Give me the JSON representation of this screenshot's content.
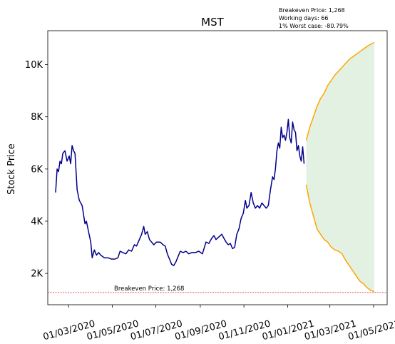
{
  "chart_data": {
    "type": "line",
    "title": "MST",
    "xlabel": "",
    "ylabel": "Stock Price",
    "x_ticks": [
      "01/03/2020",
      "01/05/2020",
      "01/07/2020",
      "01/09/2020",
      "01/11/2020",
      "01/01/2021",
      "01/03/2021",
      "01/05/2021"
    ],
    "y_ticks": [
      "2K",
      "4K",
      "6K",
      "8K",
      "10K"
    ],
    "y_tick_values": [
      2000,
      4000,
      6000,
      8000,
      10000
    ],
    "xlim": [
      "2020-02-01",
      "2021-05-20"
    ],
    "ylim": [
      800,
      11300
    ],
    "grid": false,
    "info_lines": [
      "Breakeven Price: 1,268",
      "Working days: 66",
      "1% Worst case: -80.79%"
    ],
    "breakeven": {
      "value": 1268,
      "label": "Breakeven Price: 1,268",
      "color": "#d62728"
    },
    "series": [
      {
        "color": "#00008b",
        "points": [
          [
            "2020-02-12",
            5100
          ],
          [
            "2020-02-14",
            6000
          ],
          [
            "2020-02-16",
            5900
          ],
          [
            "2020-02-18",
            6300
          ],
          [
            "2020-02-20",
            6200
          ],
          [
            "2020-02-22",
            6600
          ],
          [
            "2020-02-25",
            6700
          ],
          [
            "2020-02-28",
            6300
          ],
          [
            "2020-03-02",
            6500
          ],
          [
            "2020-03-04",
            6200
          ],
          [
            "2020-03-06",
            6900
          ],
          [
            "2020-03-08",
            6700
          ],
          [
            "2020-03-10",
            6600
          ],
          [
            "2020-03-13",
            5200
          ],
          [
            "2020-03-16",
            4800
          ],
          [
            "2020-03-20",
            4600
          ],
          [
            "2020-03-24",
            3900
          ],
          [
            "2020-03-26",
            4000
          ],
          [
            "2020-03-29",
            3600
          ],
          [
            "2020-04-01",
            3200
          ],
          [
            "2020-04-03",
            2600
          ],
          [
            "2020-04-06",
            2900
          ],
          [
            "2020-04-09",
            2700
          ],
          [
            "2020-04-12",
            2800
          ],
          [
            "2020-04-15",
            2700
          ],
          [
            "2020-04-20",
            2600
          ],
          [
            "2020-04-25",
            2600
          ],
          [
            "2020-04-30",
            2550
          ],
          [
            "2020-05-05",
            2550
          ],
          [
            "2020-05-09",
            2600
          ],
          [
            "2020-05-12",
            2850
          ],
          [
            "2020-05-16",
            2800
          ],
          [
            "2020-05-20",
            2750
          ],
          [
            "2020-05-24",
            2900
          ],
          [
            "2020-05-28",
            2850
          ],
          [
            "2020-06-01",
            3100
          ],
          [
            "2020-06-04",
            3050
          ],
          [
            "2020-06-08",
            3300
          ],
          [
            "2020-06-11",
            3500
          ],
          [
            "2020-06-14",
            3800
          ],
          [
            "2020-06-16",
            3500
          ],
          [
            "2020-06-19",
            3600
          ],
          [
            "2020-06-22",
            3300
          ],
          [
            "2020-06-25",
            3200
          ],
          [
            "2020-06-28",
            3100
          ],
          [
            "2020-07-02",
            3200
          ],
          [
            "2020-07-07",
            3200
          ],
          [
            "2020-07-11",
            3100
          ],
          [
            "2020-07-14",
            3050
          ],
          [
            "2020-07-17",
            2750
          ],
          [
            "2020-07-20",
            2550
          ],
          [
            "2020-07-23",
            2350
          ],
          [
            "2020-07-26",
            2300
          ],
          [
            "2020-07-29",
            2450
          ],
          [
            "2020-08-01",
            2650
          ],
          [
            "2020-08-04",
            2850
          ],
          [
            "2020-08-08",
            2800
          ],
          [
            "2020-08-12",
            2850
          ],
          [
            "2020-08-16",
            2750
          ],
          [
            "2020-08-20",
            2800
          ],
          [
            "2020-08-25",
            2800
          ],
          [
            "2020-08-30",
            2850
          ],
          [
            "2020-09-04",
            2750
          ],
          [
            "2020-09-09",
            3200
          ],
          [
            "2020-09-13",
            3150
          ],
          [
            "2020-09-17",
            3350
          ],
          [
            "2020-09-20",
            3450
          ],
          [
            "2020-09-23",
            3300
          ],
          [
            "2020-09-27",
            3400
          ],
          [
            "2020-10-01",
            3500
          ],
          [
            "2020-10-04",
            3350
          ],
          [
            "2020-10-07",
            3200
          ],
          [
            "2020-10-10",
            3100
          ],
          [
            "2020-10-13",
            3150
          ],
          [
            "2020-10-16",
            2950
          ],
          [
            "2020-10-19",
            3000
          ],
          [
            "2020-10-22",
            3500
          ],
          [
            "2020-10-25",
            3700
          ],
          [
            "2020-10-28",
            4100
          ],
          [
            "2020-10-31",
            4300
          ],
          [
            "2020-11-03",
            4800
          ],
          [
            "2020-11-05",
            4500
          ],
          [
            "2020-11-08",
            4600
          ],
          [
            "2020-11-11",
            5100
          ],
          [
            "2020-11-14",
            4700
          ],
          [
            "2020-11-17",
            4500
          ],
          [
            "2020-11-20",
            4600
          ],
          [
            "2020-11-23",
            4500
          ],
          [
            "2020-11-26",
            4700
          ],
          [
            "2020-11-29",
            4600
          ],
          [
            "2020-12-02",
            4500
          ],
          [
            "2020-12-05",
            4600
          ],
          [
            "2020-12-08",
            5200
          ],
          [
            "2020-12-11",
            5700
          ],
          [
            "2020-12-13",
            5600
          ],
          [
            "2020-12-15",
            6000
          ],
          [
            "2020-12-17",
            6700
          ],
          [
            "2020-12-19",
            7000
          ],
          [
            "2020-12-21",
            6800
          ],
          [
            "2020-12-23",
            7600
          ],
          [
            "2020-12-25",
            7200
          ],
          [
            "2020-12-27",
            7300
          ],
          [
            "2020-12-29",
            7100
          ],
          [
            "2020-12-31",
            7400
          ],
          [
            "2021-01-02",
            7900
          ],
          [
            "2021-01-04",
            7200
          ],
          [
            "2021-01-06",
            7000
          ],
          [
            "2021-01-08",
            7800
          ],
          [
            "2021-01-10",
            7500
          ],
          [
            "2021-01-12",
            7400
          ],
          [
            "2021-01-14",
            6700
          ],
          [
            "2021-01-16",
            6900
          ],
          [
            "2021-01-18",
            6500
          ],
          [
            "2021-01-20",
            6300
          ],
          [
            "2021-01-22",
            6850
          ],
          [
            "2021-01-24",
            6200
          ]
        ]
      },
      {
        "color": "#ffa500",
        "points": [
          [
            "2021-01-27",
            7100
          ],
          [
            "2021-02-01",
            7600
          ],
          [
            "2021-02-06",
            8000
          ],
          [
            "2021-02-11",
            8400
          ],
          [
            "2021-02-16",
            8700
          ],
          [
            "2021-02-21",
            8900
          ],
          [
            "2021-02-26",
            9200
          ],
          [
            "2021-03-03",
            9400
          ],
          [
            "2021-03-08",
            9600
          ],
          [
            "2021-03-13",
            9750
          ],
          [
            "2021-03-18",
            9900
          ],
          [
            "2021-03-23",
            10050
          ],
          [
            "2021-03-28",
            10200
          ],
          [
            "2021-04-02",
            10300
          ],
          [
            "2021-04-07",
            10400
          ],
          [
            "2021-04-12",
            10500
          ],
          [
            "2021-04-17",
            10600
          ],
          [
            "2021-04-22",
            10700
          ],
          [
            "2021-04-27",
            10780
          ],
          [
            "2021-05-02",
            10850
          ]
        ]
      },
      {
        "color": "#ffa500",
        "points": [
          [
            "2021-01-27",
            5400
          ],
          [
            "2021-02-01",
            4700
          ],
          [
            "2021-02-06",
            4200
          ],
          [
            "2021-02-11",
            3700
          ],
          [
            "2021-02-16",
            3500
          ],
          [
            "2021-02-21",
            3300
          ],
          [
            "2021-02-26",
            3200
          ],
          [
            "2021-03-03",
            3000
          ],
          [
            "2021-03-08",
            2900
          ],
          [
            "2021-03-13",
            2850
          ],
          [
            "2021-03-18",
            2750
          ],
          [
            "2021-03-23",
            2500
          ],
          [
            "2021-03-28",
            2300
          ],
          [
            "2021-04-02",
            2100
          ],
          [
            "2021-04-07",
            1900
          ],
          [
            "2021-04-12",
            1700
          ],
          [
            "2021-04-17",
            1600
          ],
          [
            "2021-04-22",
            1450
          ],
          [
            "2021-04-27",
            1350
          ],
          [
            "2021-05-02",
            1300
          ]
        ]
      }
    ],
    "band": {
      "color": "#e3f1e3",
      "between": [
        1,
        2
      ]
    }
  }
}
